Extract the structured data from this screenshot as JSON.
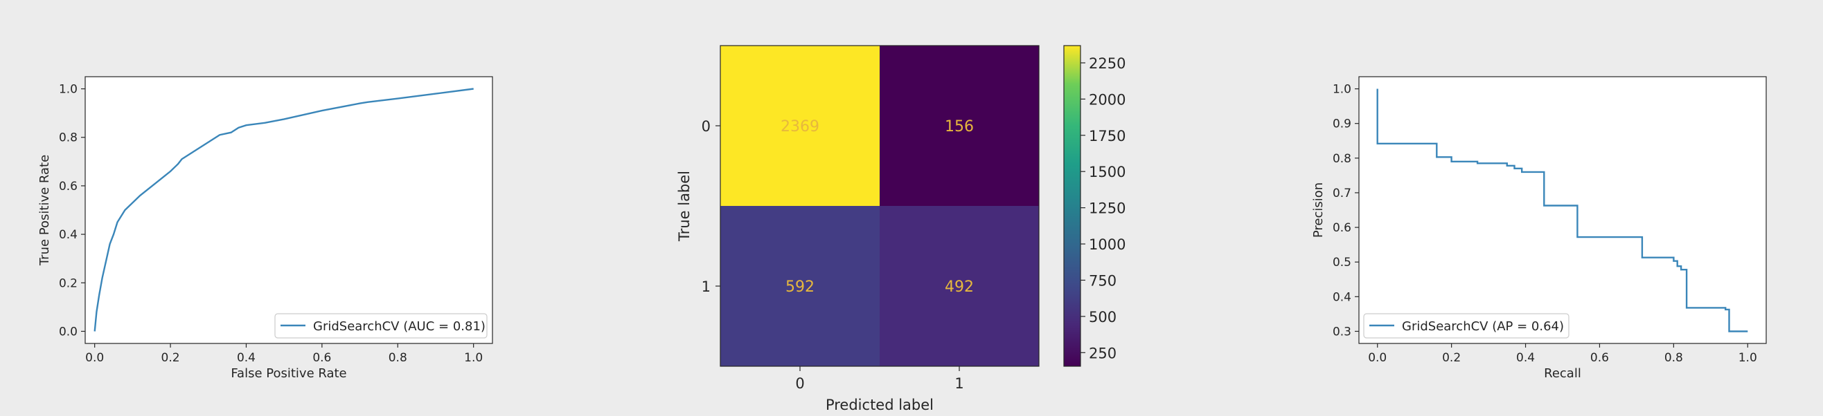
{
  "chart_data": [
    {
      "type": "line",
      "xlabel": "False Positive Rate",
      "ylabel": "True Positive Rate",
      "xlim": [
        -0.025,
        1.05
      ],
      "ylim": [
        -0.05,
        1.05
      ],
      "xticks": [
        "0.0",
        "0.2",
        "0.4",
        "0.6",
        "0.8",
        "1.0"
      ],
      "yticks": [
        "0.0",
        "0.2",
        "0.4",
        "0.6",
        "0.8",
        "1.0"
      ],
      "legend": "lower-right",
      "color": "#3a86b9",
      "series": [
        {
          "name": "GridSearchCV (AUC = 0.81)",
          "x": [
            0.0,
            0.005,
            0.012,
            0.02,
            0.03,
            0.04,
            0.05,
            0.06,
            0.08,
            0.12,
            0.16,
            0.2,
            0.22,
            0.23,
            0.26,
            0.3,
            0.33,
            0.36,
            0.38,
            0.4,
            0.45,
            0.5,
            0.6,
            0.7,
            0.72,
            0.8,
            0.9,
            1.0
          ],
          "y": [
            0.0,
            0.08,
            0.15,
            0.22,
            0.29,
            0.36,
            0.4,
            0.45,
            0.5,
            0.56,
            0.61,
            0.66,
            0.69,
            0.71,
            0.74,
            0.78,
            0.81,
            0.82,
            0.84,
            0.85,
            0.86,
            0.875,
            0.91,
            0.94,
            0.945,
            0.96,
            0.98,
            1.0
          ]
        }
      ]
    },
    {
      "type": "heatmap",
      "xlabel": "Predicted label",
      "ylabel": "True label",
      "x_categories": [
        "0",
        "1"
      ],
      "y_categories": [
        "0",
        "1"
      ],
      "values": [
        [
          2369,
          156
        ],
        [
          592,
          492
        ]
      ],
      "colormap": "viridis",
      "colorbar_range": [
        156,
        2369
      ],
      "colorbar_ticks": [
        "250",
        "500",
        "750",
        "1000",
        "1250",
        "1500",
        "1750",
        "2000",
        "2250"
      ],
      "colorbar_tick_values": [
        250,
        500,
        750,
        1000,
        1250,
        1500,
        1750,
        2000,
        2250
      ],
      "cell_colors": [
        [
          "#fde725",
          "#440154"
        ],
        [
          "#433d84",
          "#472b7a"
        ]
      ],
      "text_color": "#e7b83d"
    },
    {
      "type": "line",
      "xlabel": "Recall",
      "ylabel": "Precision",
      "xlim": [
        -0.05,
        1.05
      ],
      "ylim": [
        0.265,
        1.035
      ],
      "xticks": [
        "0.0",
        "0.2",
        "0.4",
        "0.6",
        "0.8",
        "1.0"
      ],
      "yticks": [
        "0.3",
        "0.4",
        "0.5",
        "0.6",
        "0.7",
        "0.8",
        "0.9",
        "1.0"
      ],
      "legend": "lower-left",
      "color": "#3a86b9",
      "series": [
        {
          "name": "GridSearchCV (AP = 0.64)",
          "x": [
            0.0,
            0.0,
            0.16,
            0.16,
            0.2,
            0.2,
            0.27,
            0.27,
            0.35,
            0.35,
            0.37,
            0.37,
            0.39,
            0.39,
            0.45,
            0.45,
            0.54,
            0.54,
            0.715,
            0.715,
            0.8,
            0.8,
            0.81,
            0.81,
            0.82,
            0.82,
            0.835,
            0.835,
            0.94,
            0.94,
            0.95,
            0.95,
            1.0
          ],
          "y": [
            1.0,
            0.842,
            0.842,
            0.803,
            0.803,
            0.79,
            0.79,
            0.785,
            0.785,
            0.778,
            0.778,
            0.77,
            0.77,
            0.76,
            0.76,
            0.663,
            0.663,
            0.572,
            0.572,
            0.513,
            0.513,
            0.503,
            0.503,
            0.488,
            0.488,
            0.478,
            0.478,
            0.368,
            0.368,
            0.363,
            0.363,
            0.3,
            0.3
          ]
        }
      ]
    }
  ]
}
